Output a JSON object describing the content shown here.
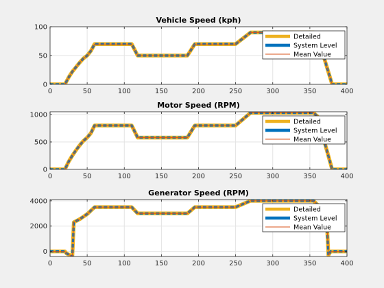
{
  "colors": {
    "figure_bg": "#f0f0f0",
    "axes_bg": "#ffffff",
    "detailed": "#edb120",
    "system_level": "#0072bd",
    "mean_value": "#d95319",
    "grid": "#e3e3e3",
    "axis": "#262626"
  },
  "chart_data": [
    {
      "type": "line",
      "title": "Vehicle Speed (kph)",
      "xlabel": "",
      "ylabel": "",
      "xlim": [
        0,
        400
      ],
      "ylim": [
        0,
        100
      ],
      "xticks": [
        0,
        50,
        100,
        150,
        200,
        250,
        300,
        350,
        400
      ],
      "yticks": [
        0,
        50,
        100
      ],
      "grid": true,
      "legend_position": "top-right",
      "series": [
        {
          "name": "Detailed",
          "color": "#edb120",
          "line": "thick",
          "x": [
            0,
            20,
            25,
            30,
            35,
            40,
            45,
            50,
            55,
            60,
            110,
            118,
            185,
            195,
            250,
            270,
            355,
            360,
            380,
            400
          ],
          "y": [
            0,
            0,
            12,
            22,
            30,
            38,
            45,
            50,
            58,
            70,
            70,
            50,
            50,
            70,
            70,
            90,
            90,
            85,
            0,
            0
          ]
        },
        {
          "name": "System Level",
          "color": "#0072bd",
          "line": "thick",
          "x": [
            0,
            20,
            25,
            30,
            35,
            40,
            45,
            50,
            55,
            60,
            110,
            118,
            185,
            195,
            250,
            270,
            355,
            360,
            380,
            400
          ],
          "y": [
            0,
            0,
            12,
            22,
            30,
            38,
            45,
            50,
            58,
            70,
            70,
            50,
            50,
            70,
            70,
            90,
            90,
            85,
            0,
            0
          ]
        },
        {
          "name": "Mean Value",
          "color": "#d95319",
          "line": "thin",
          "x": [
            0,
            20,
            25,
            30,
            35,
            40,
            45,
            50,
            55,
            60,
            110,
            118,
            185,
            195,
            250,
            270,
            355,
            360,
            380,
            400
          ],
          "y": [
            0,
            0,
            12,
            22,
            30,
            38,
            45,
            50,
            58,
            70,
            70,
            50,
            50,
            70,
            70,
            90,
            90,
            85,
            0,
            0
          ]
        }
      ]
    },
    {
      "type": "line",
      "title": "Motor Speed (RPM)",
      "xlabel": "",
      "ylabel": "",
      "xlim": [
        0,
        400
      ],
      "ylim": [
        0,
        1050
      ],
      "xticks": [
        0,
        50,
        100,
        150,
        200,
        250,
        300,
        350,
        400
      ],
      "yticks": [
        0,
        500,
        1000
      ],
      "grid": true,
      "legend_position": "top-right",
      "series": [
        {
          "name": "Detailed",
          "color": "#edb120",
          "line": "thick",
          "x": [
            0,
            20,
            25,
            30,
            35,
            40,
            45,
            50,
            55,
            60,
            110,
            118,
            185,
            195,
            250,
            270,
            355,
            360,
            380,
            400
          ],
          "y": [
            0,
            0,
            140,
            250,
            350,
            440,
            520,
            580,
            660,
            800,
            800,
            580,
            580,
            800,
            800,
            1030,
            1030,
            970,
            0,
            0
          ]
        },
        {
          "name": "System Level",
          "color": "#0072bd",
          "line": "thick",
          "x": [
            0,
            20,
            25,
            30,
            35,
            40,
            45,
            50,
            55,
            60,
            110,
            118,
            185,
            195,
            250,
            270,
            355,
            360,
            380,
            400
          ],
          "y": [
            0,
            0,
            140,
            250,
            350,
            440,
            520,
            580,
            660,
            800,
            800,
            580,
            580,
            800,
            800,
            1030,
            1030,
            970,
            0,
            0
          ]
        },
        {
          "name": "Mean Value",
          "color": "#d95319",
          "line": "thin",
          "x": [
            0,
            20,
            25,
            30,
            35,
            40,
            45,
            50,
            55,
            60,
            110,
            118,
            185,
            195,
            250,
            270,
            355,
            360,
            380,
            400
          ],
          "y": [
            0,
            0,
            140,
            250,
            350,
            440,
            520,
            580,
            660,
            800,
            800,
            580,
            580,
            800,
            800,
            1030,
            1030,
            970,
            0,
            0
          ]
        }
      ]
    },
    {
      "type": "line",
      "title": "Generator Speed (RPM)",
      "xlabel": "",
      "ylabel": "",
      "xlim": [
        0,
        400
      ],
      "ylim": [
        -400,
        4100
      ],
      "xticks": [
        0,
        50,
        100,
        150,
        200,
        250,
        300,
        350,
        400
      ],
      "yticks": [
        0,
        2000,
        4000
      ],
      "grid": true,
      "legend_position": "top-right",
      "series": [
        {
          "name": "Detailed",
          "color": "#edb120",
          "line": "thick",
          "x": [
            0,
            20,
            22,
            30,
            32,
            40,
            50,
            60,
            110,
            118,
            185,
            195,
            250,
            270,
            355,
            360,
            372,
            375,
            378,
            400
          ],
          "y": [
            0,
            0,
            -150,
            -400,
            2300,
            2550,
            2950,
            3500,
            3500,
            3000,
            3000,
            3500,
            3500,
            4000,
            4000,
            3700,
            3400,
            -300,
            0,
            0
          ]
        },
        {
          "name": "System Level",
          "color": "#0072bd",
          "line": "thick",
          "x": [
            0,
            20,
            22,
            30,
            32,
            40,
            50,
            60,
            110,
            118,
            185,
            195,
            250,
            270,
            355,
            360,
            372,
            375,
            378,
            400
          ],
          "y": [
            0,
            0,
            -150,
            -400,
            2300,
            2550,
            2950,
            3500,
            3500,
            3000,
            3000,
            3500,
            3500,
            4000,
            4000,
            3700,
            3400,
            -300,
            0,
            0
          ]
        },
        {
          "name": "Mean Value",
          "color": "#d95319",
          "line": "thin",
          "x": [
            0,
            20,
            22,
            30,
            32,
            40,
            50,
            60,
            110,
            118,
            185,
            195,
            250,
            270,
            355,
            360,
            372,
            375,
            378,
            400
          ],
          "y": [
            0,
            0,
            -150,
            -400,
            2300,
            2550,
            2950,
            3500,
            3500,
            3000,
            3000,
            3500,
            3500,
            4000,
            4000,
            3700,
            3400,
            -300,
            0,
            0
          ]
        }
      ]
    }
  ]
}
